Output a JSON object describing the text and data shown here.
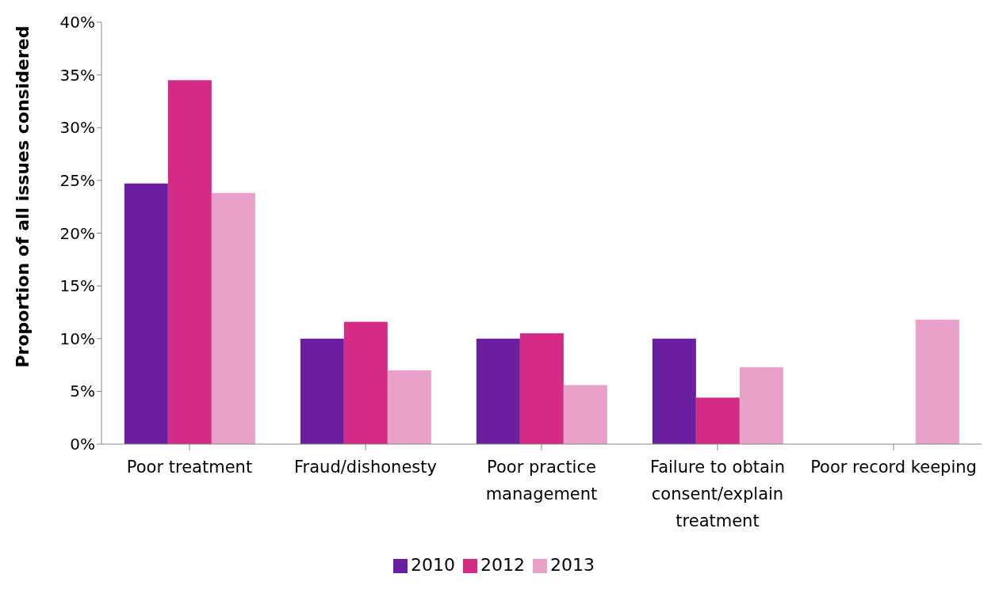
{
  "chart_data": {
    "type": "bar",
    "ylabel": "Proportion of all issues considered",
    "categories": [
      "Poor treatment",
      "Fraud/dishonesty",
      "Poor practice management",
      "Failure to obtain consent/explain treatment",
      "Poor record keeping"
    ],
    "series": [
      {
        "name": "2010",
        "color": "#6a1fa0",
        "values": [
          24.7,
          10.0,
          10.0,
          10.0,
          0
        ]
      },
      {
        "name": "2012",
        "color": "#d42c84",
        "values": [
          34.5,
          11.6,
          10.5,
          4.4,
          0
        ]
      },
      {
        "name": "2013",
        "color": "#e8a0c8",
        "values": [
          23.8,
          7.0,
          5.6,
          7.3,
          11.8
        ]
      }
    ],
    "ylim": [
      0,
      40
    ],
    "yticks": [
      {
        "value": 0,
        "label": "0%"
      },
      {
        "value": 5,
        "label": "5%"
      },
      {
        "value": 10,
        "label": "10%"
      },
      {
        "value": 15,
        "label": "15%"
      },
      {
        "value": 20,
        "label": "20%"
      },
      {
        "value": 25,
        "label": "25%"
      },
      {
        "value": 30,
        "label": "30%"
      },
      {
        "value": 35,
        "label": "35%"
      },
      {
        "value": 40,
        "label": "40%"
      }
    ],
    "grid": false,
    "legend": "bottom"
  }
}
